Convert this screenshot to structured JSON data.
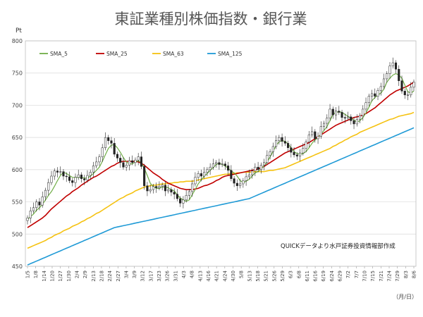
{
  "chart_data": {
    "type": "candlestick-with-moving-averages",
    "title": "東証業種別株価指数・銀行業",
    "y_unit": "Pt",
    "x_unit": "（月/日）",
    "source_note": "QUICKデータより水戸証券投資情報部作成",
    "ylim": [
      450,
      800
    ],
    "y_ticks": [
      450,
      500,
      550,
      600,
      650,
      700,
      750,
      800
    ],
    "x_tick_labels": [
      "1/5",
      "1/8",
      "1/14",
      "1/20",
      "1/27",
      "1/30",
      "2/4",
      "2/9",
      "2/13",
      "2/18",
      "2/24",
      "2/27",
      "3/4",
      "3/9",
      "3/12",
      "3/17",
      "3/23",
      "3/26",
      "3/31",
      "4/3",
      "4/8",
      "4/13",
      "4/16",
      "4/21",
      "4/24",
      "4/30",
      "5/8",
      "5/13",
      "5/18",
      "5/21",
      "5/26",
      "5/29",
      "6/3",
      "6/8",
      "6/11",
      "6/16",
      "6/19",
      "6/24",
      "6/29",
      "7/2",
      "7/7",
      "7/10",
      "7/15",
      "7/21",
      "7/24",
      "7/29",
      "8/3",
      "8/6"
    ],
    "legend": [
      {
        "name": "SMA_5",
        "color": "#70ad47"
      },
      {
        "name": "SMA_25",
        "color": "#c00000"
      },
      {
        "name": "SMA_63",
        "color": "#f5c211"
      },
      {
        "name": "SMA_125",
        "color": "#1f9ad6"
      }
    ],
    "legend_position": "top-left",
    "grid": "horizontal",
    "candle_up_color": "#ffffff",
    "candle_down_color": "#222222",
    "close_series": [
      525,
      536,
      541,
      550,
      545,
      558,
      568,
      580,
      590,
      598,
      596,
      597,
      590,
      589,
      583,
      580,
      588,
      592,
      586,
      584,
      591,
      596,
      606,
      612,
      620,
      634,
      650,
      645,
      641,
      624,
      618,
      611,
      604,
      607,
      614,
      611,
      615,
      620,
      605,
      575,
      567,
      569,
      574,
      572,
      574,
      576,
      567,
      569,
      565,
      562,
      555,
      548,
      553,
      560,
      566,
      578,
      588,
      594,
      590,
      596,
      600,
      604,
      609,
      611,
      608,
      609,
      606,
      599,
      586,
      579,
      575,
      578,
      583,
      589,
      592,
      598,
      604,
      600,
      607,
      611,
      622,
      628,
      636,
      645,
      650,
      644,
      641,
      634,
      627,
      623,
      621,
      626,
      633,
      643,
      654,
      659,
      648,
      652,
      667,
      672,
      680,
      694,
      685,
      691,
      689,
      681,
      680,
      682,
      676,
      671,
      678,
      684,
      694,
      704,
      714,
      718,
      714,
      723,
      729,
      741,
      749,
      761,
      766,
      756,
      738,
      722,
      716,
      716,
      728,
      736
    ],
    "sma_5": [
      523,
      527,
      531,
      537,
      541,
      546,
      553,
      560,
      566,
      574,
      583,
      591,
      596,
      594,
      591,
      588,
      588,
      588,
      588,
      587,
      587,
      590,
      594,
      599,
      604,
      613,
      623,
      633,
      638,
      639,
      634,
      627,
      619,
      612,
      609,
      609,
      612,
      614,
      611,
      602,
      591,
      579,
      574,
      571,
      571,
      573,
      573,
      572,
      569,
      567,
      561,
      556,
      553,
      551,
      553,
      561,
      569,
      578,
      584,
      590,
      594,
      599,
      603,
      608,
      610,
      608,
      606,
      602,
      598,
      595,
      590,
      583,
      580,
      582,
      585,
      590,
      595,
      597,
      601,
      606,
      612,
      620,
      628,
      638,
      643,
      645,
      644,
      640,
      634,
      628,
      625,
      624,
      625,
      628,
      634,
      641,
      646,
      650,
      655,
      661,
      667,
      676,
      686,
      689,
      690,
      689,
      686,
      683,
      680,
      677,
      674,
      676,
      681,
      688,
      697,
      707,
      712,
      716,
      719,
      725,
      736,
      742,
      747,
      749,
      747,
      742,
      731,
      721,
      719,
      722
    ],
    "sma_25": [
      510,
      513,
      516,
      519,
      522,
      525,
      529,
      534,
      539,
      543,
      547,
      551,
      555,
      559,
      562,
      566,
      569,
      572,
      576,
      579,
      582,
      585,
      588,
      590,
      593,
      596,
      599,
      602,
      605,
      607,
      610,
      612,
      613,
      613,
      613,
      613,
      613,
      612,
      610,
      607,
      603,
      599,
      595,
      592,
      589,
      585,
      582,
      579,
      577,
      575,
      573,
      571,
      570,
      569,
      569,
      569,
      570,
      571,
      573,
      575,
      576,
      578,
      580,
      583,
      585,
      588,
      590,
      591,
      592,
      593,
      594,
      595,
      596,
      597,
      598,
      599,
      600,
      601,
      603,
      605,
      608,
      611,
      614,
      617,
      620,
      623,
      626,
      628,
      630,
      632,
      634,
      636,
      638,
      640,
      642,
      645,
      648,
      651,
      654,
      657,
      660,
      663,
      666,
      669,
      671,
      673,
      675,
      677,
      679,
      681,
      682,
      683,
      685,
      687,
      690,
      693,
      696,
      700,
      704,
      708,
      712,
      716,
      719,
      722,
      724,
      726,
      728,
      730,
      733,
      736
    ],
    "sma_63": [
      478,
      480,
      482,
      484,
      486,
      488,
      490,
      493,
      495,
      498,
      500,
      502,
      505,
      507,
      509,
      512,
      514,
      516,
      519,
      521,
      524,
      526,
      529,
      532,
      534,
      537,
      540,
      543,
      546,
      549,
      552,
      555,
      557,
      560,
      562,
      564,
      567,
      569,
      571,
      573,
      574,
      575,
      576,
      576,
      577,
      578,
      578,
      579,
      579,
      580,
      580,
      581,
      581,
      582,
      582,
      582,
      583,
      584,
      585,
      586,
      587,
      588,
      589,
      590,
      591,
      592,
      593,
      593,
      594,
      594,
      595,
      595,
      596,
      596,
      596,
      596,
      597,
      597,
      597,
      597,
      598,
      599,
      599,
      600,
      601,
      602,
      603,
      605,
      607,
      609,
      611,
      613,
      615,
      617,
      619,
      621,
      623,
      625,
      627,
      629,
      631,
      633,
      636,
      638,
      641,
      643,
      646,
      648,
      651,
      653,
      655,
      658,
      660,
      662,
      664,
      666,
      668,
      670,
      672,
      674,
      676,
      678,
      679,
      681,
      683,
      684,
      685,
      686,
      687,
      689
    ],
    "sma_125": [
      452,
      454,
      456,
      458,
      460,
      462,
      464,
      466,
      468,
      470,
      472,
      474,
      476,
      478,
      480,
      482,
      484,
      486,
      488,
      490,
      492,
      494,
      496,
      498,
      500,
      502,
      504,
      506,
      508,
      510,
      511,
      512,
      513,
      514,
      515,
      516,
      517,
      518,
      519,
      520,
      521,
      522,
      523,
      524,
      525,
      526,
      527,
      528,
      529,
      530,
      531,
      532,
      533,
      534,
      535,
      536,
      537,
      538,
      539,
      540,
      541,
      542,
      543,
      544,
      545,
      546,
      547,
      548,
      549,
      550,
      551,
      552,
      553,
      554,
      555,
      557,
      559,
      561,
      563,
      565,
      567,
      569,
      571,
      573,
      575,
      577,
      579,
      581,
      583,
      585,
      587,
      589,
      591,
      593,
      595,
      597,
      599,
      601,
      603,
      605,
      607,
      609,
      611,
      613,
      615,
      617,
      619,
      621,
      623,
      625,
      627,
      629,
      631,
      633,
      635,
      637,
      639,
      641,
      643,
      645,
      647,
      649,
      651,
      653,
      655,
      657,
      659,
      661,
      663,
      665
    ]
  }
}
